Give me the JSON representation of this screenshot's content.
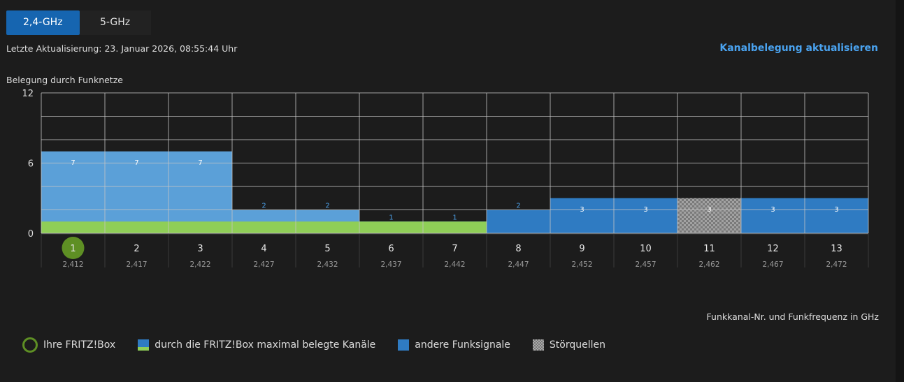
{
  "tabs": [
    {
      "label": "2,4-GHz",
      "active": true
    },
    {
      "label": "5-GHz",
      "active": false
    }
  ],
  "last_update": "Letzte Aktualisierung: 23. Januar 2026, 08:55:44 Uhr",
  "refresh_link": "Kanalbelegung aktualisieren",
  "chart_data": {
    "type": "bar",
    "ylabel": "Belegung durch Funknetze",
    "xlabel": "Funkkanal-Nr. und Funkfrequenz in GHz",
    "ylim": [
      0,
      12
    ],
    "yticks": [
      "12",
      "6",
      "0"
    ],
    "categories": [
      "1",
      "2",
      "3",
      "4",
      "5",
      "6",
      "7",
      "8",
      "9",
      "10",
      "11",
      "12",
      "13"
    ],
    "frequencies": [
      "2,412",
      "2,417",
      "2,422",
      "2,427",
      "2,432",
      "2,437",
      "2,442",
      "2,447",
      "2,452",
      "2,457",
      "2,462",
      "2,467",
      "2,472"
    ],
    "values": [
      7,
      7,
      7,
      2,
      2,
      1,
      1,
      2,
      3,
      3,
      3,
      3,
      3
    ],
    "fritzbox_channel": "1",
    "fritzbox_max_channels": [
      "1",
      "2",
      "3",
      "4",
      "5",
      "6",
      "7"
    ],
    "fritzbox_level": 1,
    "interference_channels": [
      "11"
    ],
    "colors": {
      "fritzbox_channels": "#5ba0d8",
      "other_signals": "#2f7bc2",
      "fritzbox_band": "#8fce57",
      "own_channel_marker": "#5e8f24",
      "interference": "#9a9a9a"
    },
    "grid": true
  },
  "legend": [
    {
      "label": "Ihre FRITZ!Box",
      "icon": "ring-icon"
    },
    {
      "label": "durch die FRITZ!Box maximal belegte Kanäle",
      "icon": "blue-green-swatch"
    },
    {
      "label": "andere Funksignale",
      "icon": "blue-swatch"
    },
    {
      "label": "Störquellen",
      "icon": "checkered-swatch"
    }
  ]
}
